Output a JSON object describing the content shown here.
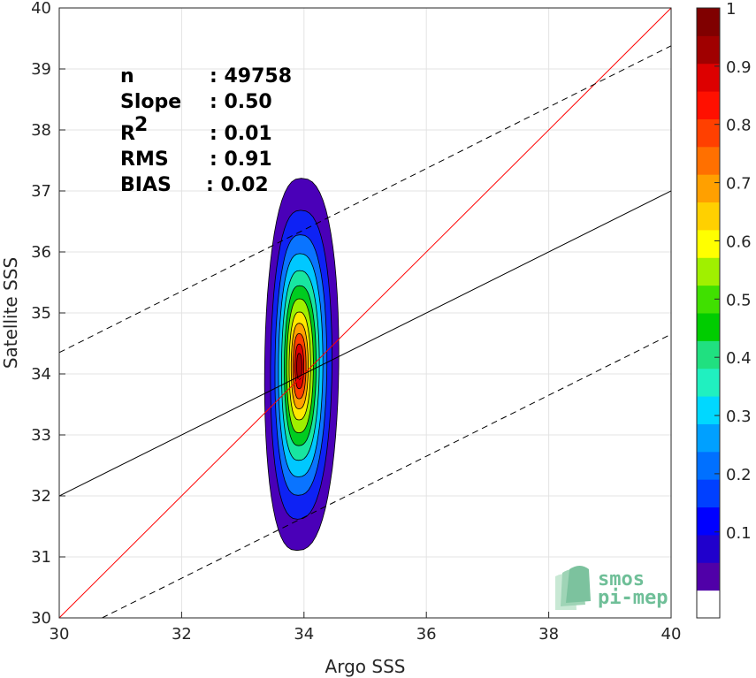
{
  "chart_data": {
    "type": "contour",
    "xlabel": "Argo SSS",
    "ylabel": "Satellite SSS",
    "xlim": [
      30,
      40
    ],
    "ylim": [
      30,
      40
    ],
    "xticks": [
      30,
      32,
      34,
      36,
      38,
      40
    ],
    "yticks": [
      30,
      31,
      32,
      33,
      34,
      35,
      36,
      37,
      38,
      39,
      40
    ],
    "grid": true,
    "stats": [
      {
        "label": "n",
        "value": ": 49758"
      },
      {
        "label": "Slope",
        "value": ": 0.50"
      },
      {
        "label": "R",
        "sup": "2",
        "value": ": 0.01"
      },
      {
        "label": "RMS",
        "value": ": 0.91"
      },
      {
        "label": "BIAS",
        "value": ": 0.02"
      }
    ],
    "lines": {
      "identity": {
        "color": "#ff0000",
        "p1": [
          30,
          30
        ],
        "p2": [
          40,
          40
        ]
      },
      "fit": {
        "color": "#000000",
        "p1": [
          30,
          32.0
        ],
        "p2": [
          40,
          37.0
        ]
      },
      "fit_upper": {
        "color": "#000000",
        "style": "dashed",
        "p1": [
          30,
          34.35
        ],
        "p2": [
          40,
          39.38
        ]
      },
      "fit_lower": {
        "color": "#000000",
        "style": "dashed",
        "p1": [
          30.7,
          30.0
        ],
        "p2": [
          40,
          34.65
        ]
      }
    },
    "density_center": [
      33.92,
      34.12
    ],
    "colorbar": {
      "ticks": [
        "0.1",
        "0.2",
        "0.3",
        "0.4",
        "0.5",
        "0.6",
        "0.7",
        "0.8",
        "0.9",
        "1"
      ],
      "colors": [
        "#ffffff",
        "#5000a8",
        "#2000cc",
        "#0000ff",
        "#0040ff",
        "#0070ff",
        "#00a0ff",
        "#00d8ff",
        "#20f0c0",
        "#20e080",
        "#00cc00",
        "#40e000",
        "#a0f000",
        "#ffff00",
        "#ffd000",
        "#ffa000",
        "#ff7000",
        "#ff4000",
        "#ff1000",
        "#dd0000",
        "#a00000",
        "#800000"
      ]
    },
    "contour_colors": [
      "#4a00b8",
      "#0e22f4",
      "#0a74ff",
      "#00c8ff",
      "#18e6a0",
      "#00cc20",
      "#9ef000",
      "#ffe800",
      "#ffa000",
      "#ff4000",
      "#e00000",
      "#a80000"
    ]
  },
  "logo": {
    "line1": "smos",
    "line2": "pi-mep"
  }
}
